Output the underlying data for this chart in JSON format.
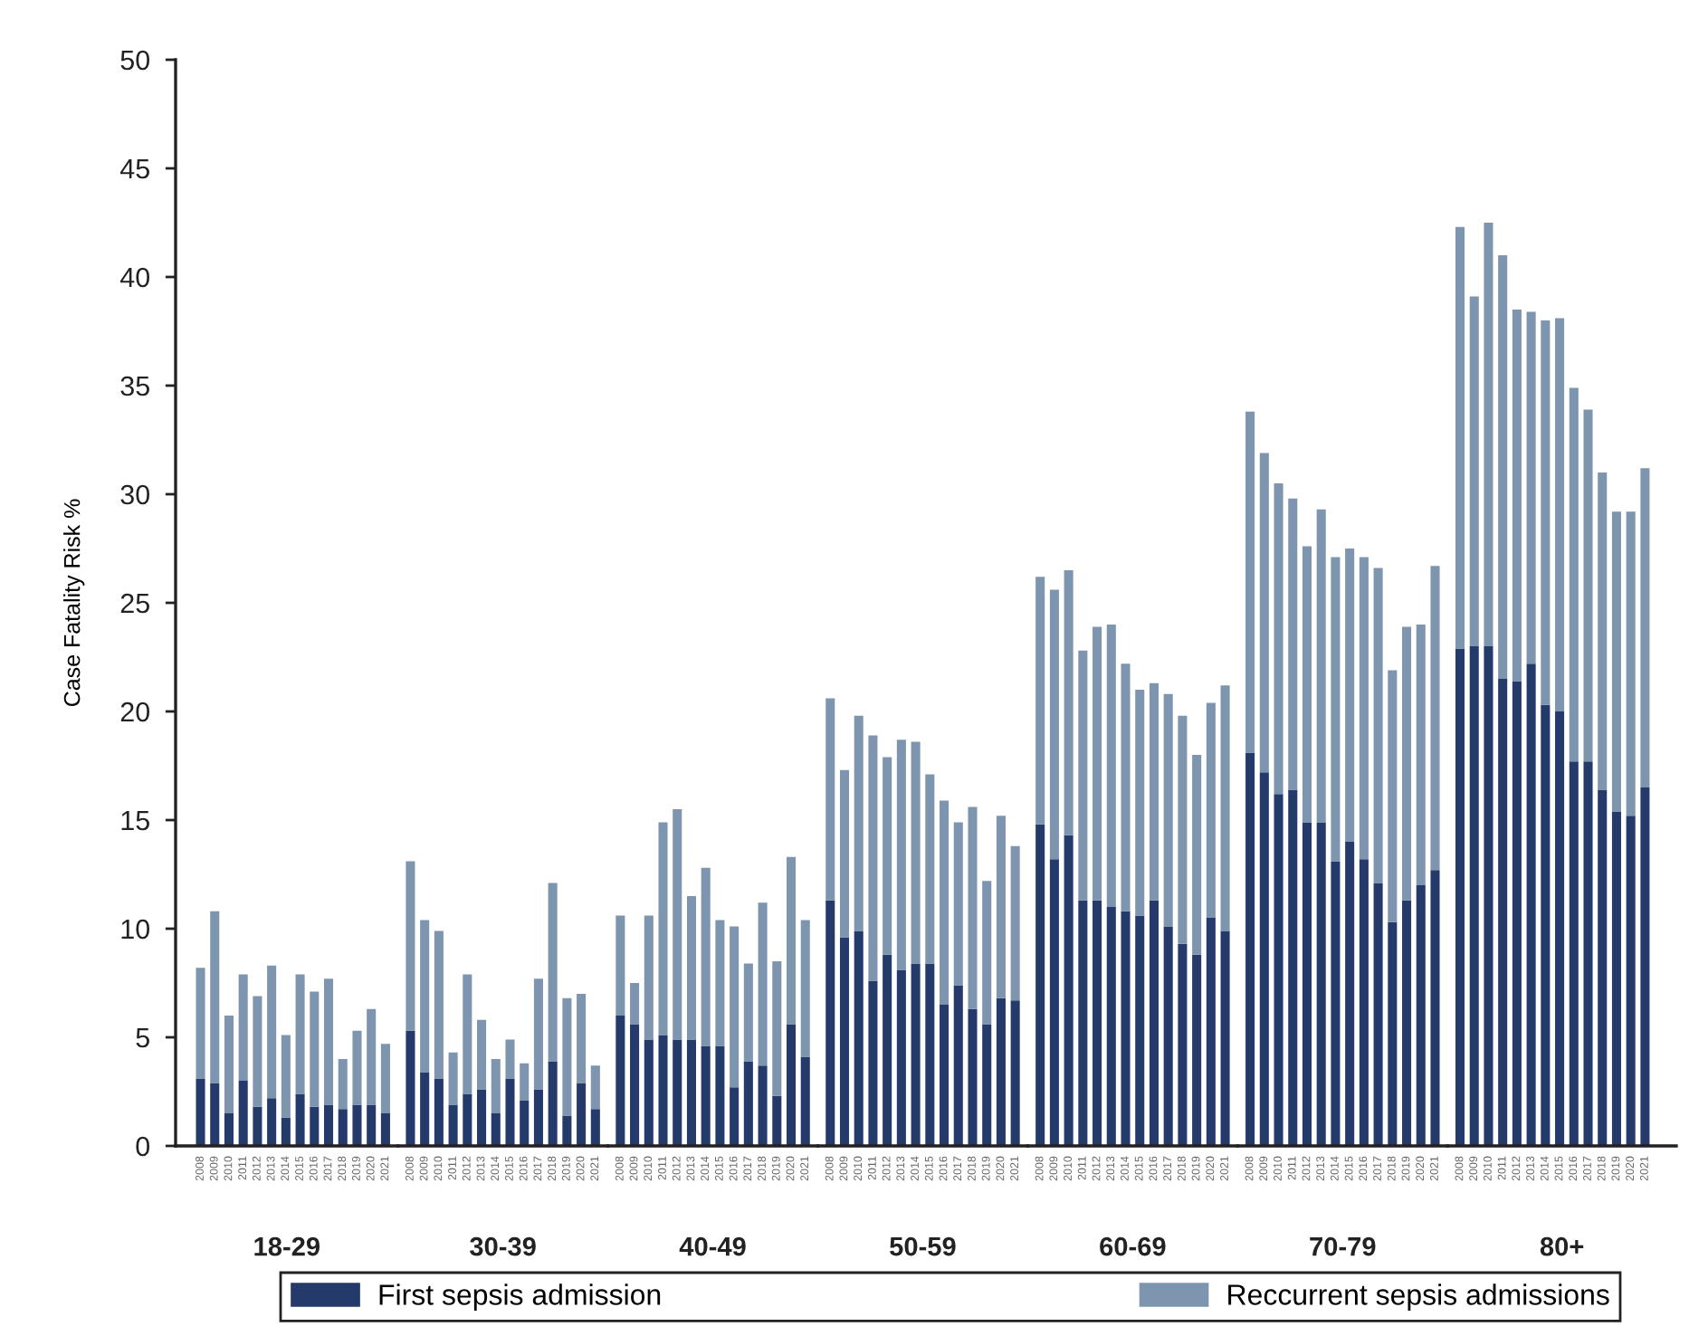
{
  "chart_data": [
    {
      "type": "bar",
      "stacked": true,
      "xlabel": "18-29",
      "ylabel": "Case Fatality Risk %",
      "categories": [
        "2008",
        "2009",
        "2010",
        "2011",
        "2012",
        "2013",
        "2014",
        "2015",
        "2016",
        "2017",
        "2018",
        "2019",
        "2020",
        "2021"
      ],
      "series": [
        {
          "name": "First sepsis admission",
          "color": "#243a6b",
          "values": [
            3.1,
            2.9,
            1.5,
            3.0,
            1.8,
            2.2,
            1.3,
            2.4,
            1.8,
            1.9,
            1.7,
            1.9,
            1.9,
            1.5
          ]
        },
        {
          "name": "Reccurrent sepsis admissions",
          "color": "#7d95ae",
          "values": [
            5.1,
            7.9,
            4.5,
            4.9,
            5.1,
            6.1,
            3.8,
            5.5,
            5.3,
            5.8,
            2.3,
            3.4,
            4.4,
            3.2
          ]
        }
      ],
      "ylim": [
        0,
        50
      ],
      "yticks": [
        0,
        5,
        10,
        15,
        20,
        25,
        30,
        35,
        40,
        45,
        50
      ],
      "legend": "bottom"
    },
    {
      "type": "bar",
      "stacked": true,
      "xlabel": "30-39",
      "categories": [
        "2008",
        "2009",
        "2010",
        "2011",
        "2012",
        "2013",
        "2014",
        "2015",
        "2016",
        "2017",
        "2018",
        "2019",
        "2020",
        "2021"
      ],
      "series": [
        {
          "color": "#243a6b",
          "values": [
            5.3,
            3.4,
            3.1,
            1.9,
            2.4,
            2.6,
            1.5,
            3.1,
            2.1,
            2.6,
            3.9,
            1.4,
            2.9,
            1.7
          ]
        },
        {
          "color": "#7d95ae",
          "values": [
            7.8,
            7.0,
            6.8,
            2.4,
            5.5,
            3.2,
            2.5,
            1.8,
            1.7,
            5.1,
            8.2,
            5.4,
            4.1,
            2.0
          ]
        }
      ],
      "ylim": [
        0,
        50
      ],
      "tick_labels": "x"
    },
    {
      "type": "bar",
      "stacked": true,
      "xlabel": "40-49",
      "categories": [
        "2008",
        "2009",
        "2010",
        "2011",
        "2012",
        "2013",
        "2014",
        "2015",
        "2016",
        "2017",
        "2018",
        "2019",
        "2020",
        "2021"
      ],
      "series": [
        {
          "color": "#243a6b",
          "values": [
            6.0,
            5.6,
            4.9,
            5.1,
            4.9,
            4.9,
            4.6,
            4.6,
            2.7,
            3.9,
            3.7,
            2.3,
            5.6,
            4.1
          ]
        },
        {
          "color": "#7d95ae",
          "values": [
            4.6,
            1.9,
            5.7,
            9.8,
            10.6,
            6.6,
            8.2,
            5.8,
            7.4,
            4.5,
            7.5,
            6.2,
            7.7,
            6.3
          ]
        }
      ],
      "ylim": [
        0,
        50
      ],
      "tick_labels": "x"
    },
    {
      "type": "bar",
      "stacked": true,
      "xlabel": "50-59",
      "categories": [
        "2008",
        "2009",
        "2010",
        "2011",
        "2012",
        "2013",
        "2014",
        "2015",
        "2016",
        "2017",
        "2018",
        "2019",
        "2020",
        "2021"
      ],
      "series": [
        {
          "color": "#243a6b",
          "values": [
            11.3,
            9.6,
            9.9,
            7.6,
            8.8,
            8.1,
            8.4,
            8.4,
            6.5,
            7.4,
            6.3,
            5.6,
            6.8,
            6.7
          ]
        },
        {
          "color": "#7d95ae",
          "values": [
            9.3,
            7.7,
            9.9,
            11.3,
            9.1,
            10.6,
            10.2,
            8.7,
            9.4,
            7.5,
            9.3,
            6.6,
            8.4,
            7.1
          ]
        }
      ],
      "ylim": [
        0,
        50
      ],
      "tick_labels": "x"
    },
    {
      "type": "bar",
      "stacked": true,
      "xlabel": "60-69",
      "categories": [
        "2008",
        "2009",
        "2010",
        "2011",
        "2012",
        "2013",
        "2014",
        "2015",
        "2016",
        "2017",
        "2018",
        "2019",
        "2020",
        "2021"
      ],
      "series": [
        {
          "color": "#243a6b",
          "values": [
            14.8,
            13.2,
            14.3,
            11.3,
            11.3,
            11.0,
            10.8,
            10.6,
            11.3,
            10.1,
            9.3,
            8.8,
            10.5,
            9.9
          ]
        },
        {
          "color": "#7d95ae",
          "values": [
            11.4,
            12.4,
            12.2,
            11.5,
            12.6,
            13.0,
            11.4,
            10.4,
            10.0,
            10.7,
            10.5,
            9.2,
            9.9,
            11.3
          ]
        }
      ],
      "ylim": [
        0,
        50
      ],
      "tick_labels": "x"
    },
    {
      "type": "bar",
      "stacked": true,
      "xlabel": "70-79",
      "categories": [
        "2008",
        "2009",
        "2010",
        "2011",
        "2012",
        "2013",
        "2014",
        "2015",
        "2016",
        "2017",
        "2018",
        "2019",
        "2020",
        "2021"
      ],
      "series": [
        {
          "color": "#243a6b",
          "values": [
            18.1,
            17.2,
            16.2,
            16.4,
            14.9,
            14.9,
            13.1,
            14.0,
            13.2,
            12.1,
            10.3,
            11.3,
            12.0,
            12.7
          ]
        },
        {
          "color": "#7d95ae",
          "values": [
            15.7,
            14.7,
            14.3,
            13.4,
            12.7,
            14.4,
            14.0,
            13.5,
            13.9,
            14.5,
            11.6,
            12.6,
            12.0,
            14.0
          ]
        }
      ],
      "ylim": [
        0,
        50
      ],
      "tick_labels": "x"
    },
    {
      "type": "bar",
      "stacked": true,
      "xlabel": "80+",
      "categories": [
        "2008",
        "2009",
        "2010",
        "2011",
        "2012",
        "2013",
        "2014",
        "2015",
        "2016",
        "2017",
        "2018",
        "2019",
        "2020",
        "2021"
      ],
      "series": [
        {
          "color": "#243a6b",
          "values": [
            22.9,
            23.0,
            23.0,
            21.5,
            21.4,
            22.2,
            20.3,
            20.0,
            17.7,
            17.7,
            16.4,
            15.4,
            15.2,
            16.5
          ]
        },
        {
          "color": "#7d95ae",
          "values": [
            19.4,
            16.1,
            19.5,
            19.5,
            17.1,
            16.2,
            17.7,
            18.1,
            17.2,
            16.2,
            14.6,
            13.8,
            14.0,
            14.7
          ]
        }
      ],
      "ylim": [
        0,
        50
      ],
      "tick_labels": "x"
    }
  ]
}
